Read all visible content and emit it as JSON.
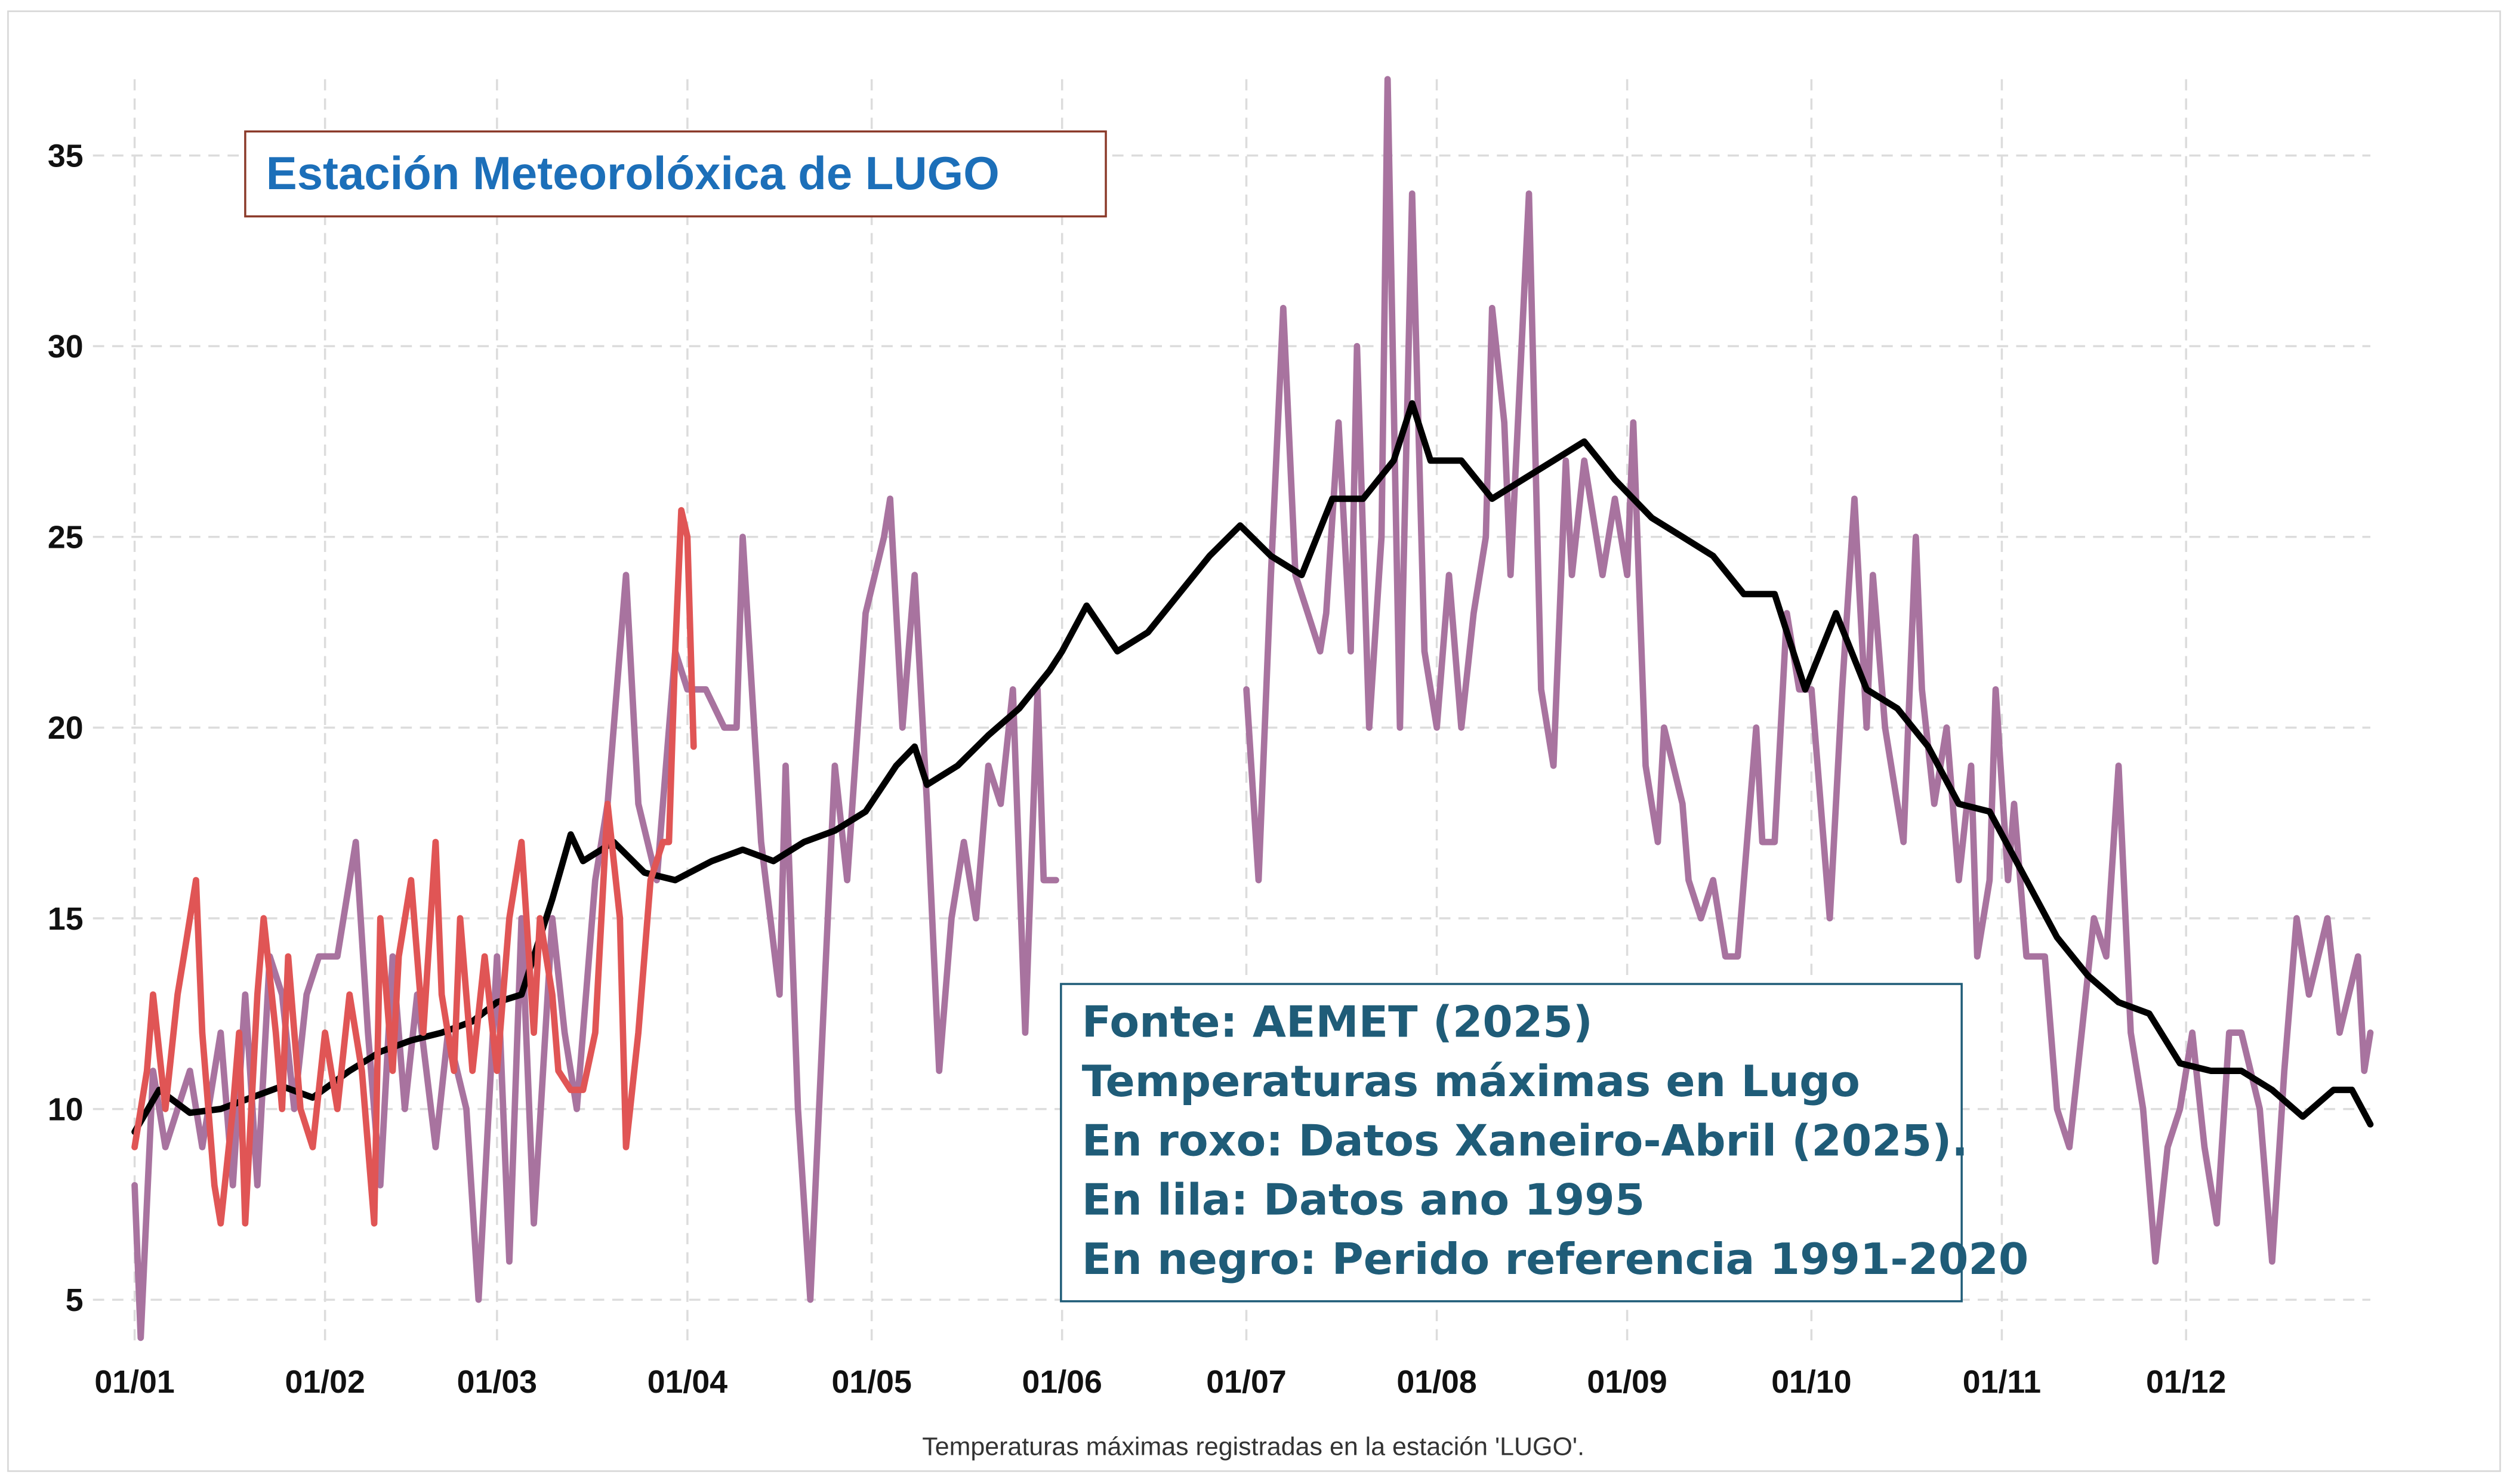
{
  "chart_data": {
    "type": "line",
    "title": "Estación Meteorolóxica de LUGO",
    "annotations": [
      "Fonte: AEMET (2025)",
      "Temperaturas máximas en Lugo",
      "En roxo: Datos Xaneiro-Abril (2025).",
      "En lila: Datos ano 1995",
      "En negro: Perido referencia 1991-2020"
    ],
    "caption": "Temperaturas máximas registradas en la estación 'LUGO'.",
    "xlim": [
      "01/01",
      "31/12"
    ],
    "xticks": [
      "01/01",
      "01/02",
      "01/03",
      "01/04",
      "01/05",
      "01/06",
      "01/07",
      "01/08",
      "01/09",
      "01/10",
      "01/11",
      "01/12"
    ],
    "ylim": [
      3.8,
      37
    ],
    "yticks": [
      5,
      10,
      15,
      20,
      25,
      30,
      35
    ],
    "grid": true,
    "series": [
      {
        "color": "#a8739f",
        "x": [
          "01/01",
          "02/01",
          "04/01",
          "06/01",
          "08/01",
          "10/01",
          "12/01",
          "15/01",
          "17/01",
          "19/01",
          "21/01",
          "23/01",
          "25/01",
          "27/01",
          "29/01",
          "31/01",
          "03/02",
          "06/02",
          "08/02",
          "10/02",
          "12/02",
          "14/02",
          "16/02",
          "19/02",
          "21/02",
          "24/02",
          "26/02",
          "01/03",
          "03/03",
          "05/03",
          "07/03",
          "10/03",
          "12/03",
          "14/03",
          "17/03",
          "19/03",
          "22/03",
          "24/03",
          "27/03",
          "30/03",
          "01/04",
          "04/04",
          "07/04",
          "09/04",
          "10/04",
          "13/04",
          "16/04",
          "17/04",
          "19/04",
          "21/04",
          "23/04",
          "25/04",
          "27/04",
          "30/04",
          "03/05",
          "04/05",
          "06/05",
          "08/05",
          "10/05",
          "12/05",
          "14/05",
          "16/05",
          "18/05",
          "20/05",
          "22/05",
          "24/05",
          "26/05",
          "28/05",
          "29/05",
          "31/05",
          "15/06",
          "01/07",
          "03/07",
          "05/07",
          "07/07",
          "09/07",
          "11/07",
          "13/07",
          "14/07",
          "16/07",
          "18/07",
          "19/07",
          "21/07",
          "23/07",
          "24/07",
          "26/07",
          "28/07",
          "30/07",
          "01/08",
          "03/08",
          "05/08",
          "07/08",
          "09/08",
          "10/08",
          "12/08",
          "13/08",
          "16/08",
          "18/08",
          "20/08",
          "22/08",
          "23/08",
          "25/08",
          "28/08",
          "30/08",
          "01/09",
          "02/09",
          "04/09",
          "06/09",
          "07/09",
          "10/09",
          "11/09",
          "13/09",
          "15/09",
          "17/09",
          "19/09",
          "22/09",
          "23/09",
          "25/09",
          "27/09",
          "29/09",
          "01/10",
          "04/10",
          "06/10",
          "08/10",
          "10/10",
          "11/10",
          "13/10",
          "16/10",
          "18/10",
          "19/10",
          "21/10",
          "23/10",
          "25/10",
          "27/10",
          "28/10",
          "30/10",
          "31/10",
          "02/11",
          "03/11",
          "05/11",
          "08/11",
          "10/11",
          "12/11",
          "14/11",
          "16/11",
          "18/11",
          "20/11",
          "22/11",
          "24/11",
          "26/11",
          "28/11",
          "30/11",
          "02/12",
          "04/12",
          "06/12",
          "08/12",
          "10/12",
          "13/12",
          "15/12",
          "17/12",
          "19/12",
          "21/12",
          "24/12",
          "26/12",
          "29/12",
          "30/12",
          "31/12"
        ],
        "values": [
          8,
          4,
          11,
          9,
          10,
          11,
          9,
          12,
          8,
          13,
          8,
          14,
          13,
          10,
          13,
          14,
          14,
          17,
          12,
          8,
          14,
          10,
          13,
          9,
          12,
          10,
          5,
          14,
          6,
          15,
          7,
          15,
          12,
          10,
          16,
          18,
          24,
          18,
          16,
          22,
          21,
          21,
          20,
          20,
          25,
          17,
          13,
          19,
          10,
          5,
          12,
          19,
          16,
          23,
          25,
          26,
          20,
          24,
          18,
          11,
          15,
          17,
          15,
          19,
          18,
          21,
          12,
          21,
          16,
          16,
          null,
          21,
          16,
          24,
          31,
          24,
          23,
          22,
          23,
          28,
          22,
          30,
          20,
          25,
          37,
          20,
          34,
          22,
          20,
          24,
          20,
          23,
          25,
          31,
          28,
          24,
          34,
          21,
          19,
          27,
          24,
          27,
          24,
          26,
          24,
          28,
          19,
          17,
          20,
          18,
          16,
          15,
          16,
          14,
          14,
          20,
          17,
          17,
          23,
          21,
          21,
          15,
          21,
          26,
          20,
          24,
          20,
          17,
          25,
          21,
          18,
          20,
          16,
          19,
          14,
          16,
          21,
          16,
          18,
          14,
          14,
          10,
          9,
          12,
          15,
          14,
          19,
          12,
          10,
          6,
          9,
          10,
          12,
          9,
          7,
          12,
          12,
          10,
          6,
          11,
          15,
          13,
          15,
          12,
          14,
          11,
          12
        ]
      },
      {
        "color": "#000000",
        "x": [
          "01/01",
          "05/01",
          "10/01",
          "15/01",
          "20/01",
          "25/01",
          "30/01",
          "05/02",
          "10/02",
          "15/02",
          "20/02",
          "25/02",
          "01/03",
          "05/03",
          "10/03",
          "13/03",
          "15/03",
          "20/03",
          "25/03",
          "30/03",
          "05/04",
          "10/04",
          "15/04",
          "20/04",
          "25/04",
          "30/04",
          "05/05",
          "08/05",
          "10/05",
          "15/05",
          "20/05",
          "25/05",
          "30/05",
          "01/06",
          "05/06",
          "10/06",
          "15/06",
          "20/06",
          "25/06",
          "30/06",
          "05/07",
          "10/07",
          "15/07",
          "20/07",
          "25/07",
          "28/07",
          "31/07",
          "05/08",
          "10/08",
          "15/08",
          "20/08",
          "25/08",
          "30/08",
          "05/09",
          "10/09",
          "15/09",
          "20/09",
          "25/09",
          "30/09",
          "05/10",
          "10/10",
          "15/10",
          "20/10",
          "25/10",
          "30/10",
          "05/11",
          "10/11",
          "15/11",
          "20/11",
          "25/11",
          "30/11",
          "05/12",
          "10/12",
          "15/12",
          "20/12",
          "25/12",
          "28/12",
          "31/12"
        ],
        "values": [
          9.4,
          10.5,
          9.9,
          10.0,
          10.3,
          10.6,
          10.3,
          11.0,
          11.5,
          11.8,
          12.0,
          12.3,
          12.8,
          13.0,
          15.5,
          17.2,
          16.5,
          17.0,
          16.2,
          16.0,
          16.5,
          16.8,
          16.5,
          17.0,
          17.3,
          17.8,
          19.0,
          19.5,
          18.5,
          19.0,
          19.8,
          20.5,
          21.5,
          22.0,
          23.2,
          22.0,
          22.5,
          23.5,
          24.5,
          25.3,
          24.5,
          24.0,
          26.0,
          26.0,
          27.0,
          28.5,
          27.0,
          27.0,
          26.0,
          26.5,
          27.0,
          27.5,
          26.5,
          25.5,
          25.0,
          24.5,
          23.5,
          23.5,
          21.0,
          23.0,
          21.0,
          20.5,
          19.5,
          18.0,
          17.8,
          16.0,
          14.5,
          13.5,
          12.8,
          12.5,
          11.2,
          11.0,
          11.0,
          10.5,
          9.8,
          10.5,
          10.5,
          9.6
        ]
      },
      {
        "color": "#e05555",
        "x": [
          "01/01",
          "03/01",
          "04/01",
          "06/01",
          "08/01",
          "09/01",
          "11/01",
          "12/01",
          "14/01",
          "15/01",
          "17/01",
          "18/01",
          "19/01",
          "21/01",
          "22/01",
          "24/01",
          "25/01",
          "26/01",
          "28/01",
          "30/01",
          "01/02",
          "03/02",
          "05/02",
          "07/02",
          "09/02",
          "10/02",
          "12/02",
          "13/02",
          "15/02",
          "17/02",
          "19/02",
          "20/02",
          "22/02",
          "23/02",
          "25/02",
          "27/02",
          "01/03",
          "03/03",
          "05/03",
          "07/03",
          "08/03",
          "10/03",
          "11/03",
          "13/03",
          "15/03",
          "17/03",
          "19/03",
          "21/03",
          "22/03",
          "24/03",
          "26/03",
          "28/03",
          "29/03",
          "30/03",
          "31/03",
          "01/04",
          "02/04"
        ],
        "values": [
          9,
          11,
          13,
          10,
          13,
          14,
          16,
          12,
          8,
          7,
          10,
          12,
          7,
          13,
          15,
          12,
          10,
          14,
          10,
          9,
          12,
          10,
          13,
          11,
          7,
          15,
          11,
          14,
          16,
          12,
          17,
          13,
          11,
          15,
          11,
          14,
          11,
          15,
          17,
          12,
          15,
          13,
          11,
          10.5,
          10.5,
          12,
          18,
          15,
          9,
          12,
          16,
          17,
          17,
          22,
          25.7,
          25,
          19.5
        ]
      }
    ]
  }
}
